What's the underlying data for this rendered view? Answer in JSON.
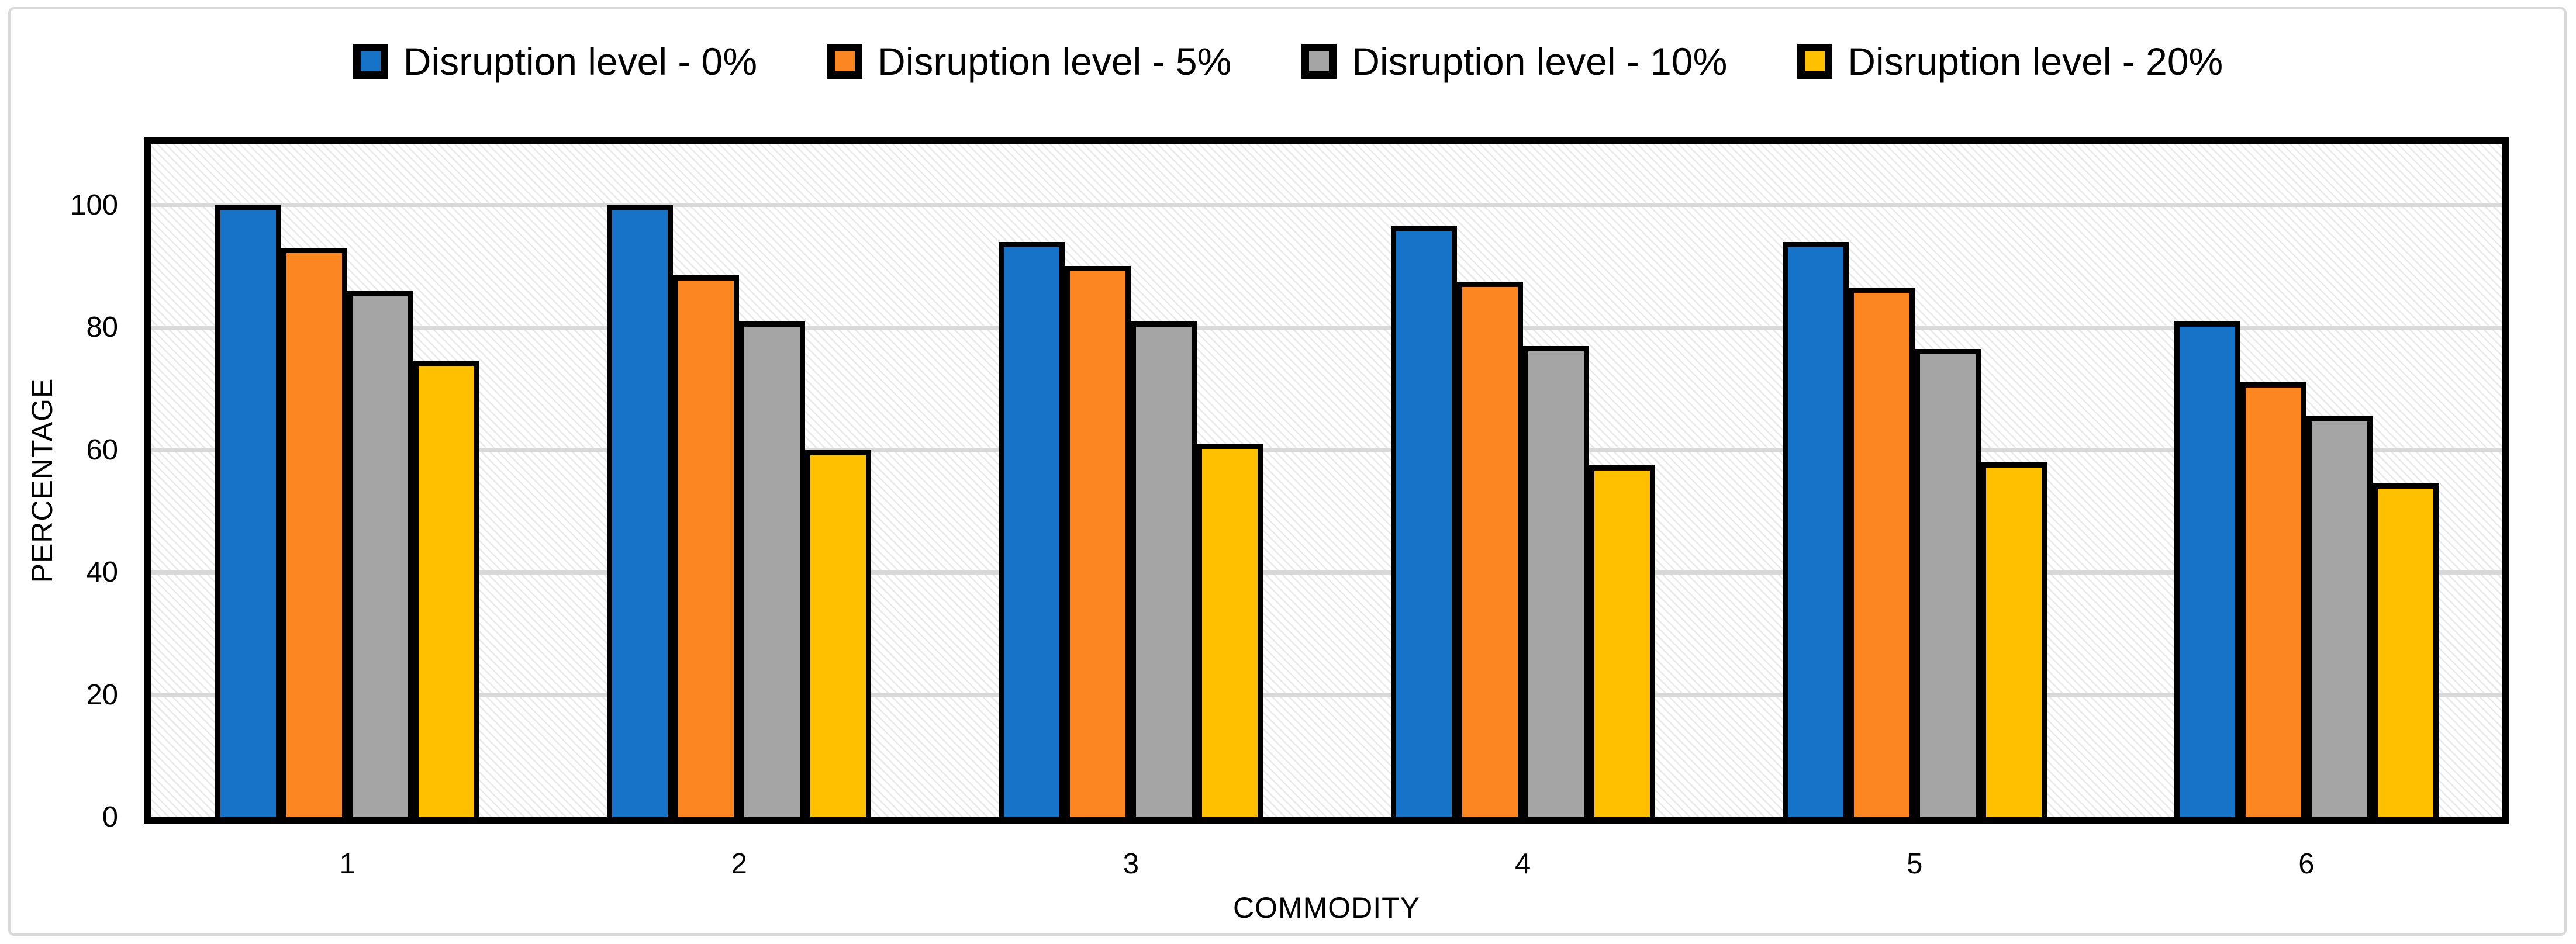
{
  "figure": {
    "background": "#FFFFFF",
    "border_color": "#D9D9D9"
  },
  "chart_data": {
    "type": "bar",
    "title": "",
    "categories": [
      "1",
      "2",
      "3",
      "4",
      "5",
      "6"
    ],
    "series": [
      {
        "name": "Disruption level - 0%",
        "color": "#1773C8",
        "values": [
          100,
          100,
          94,
          96.5,
          94,
          81
        ]
      },
      {
        "name": "Disruption level - 5%",
        "color": "#FB8622",
        "values": [
          93,
          88.5,
          90,
          87.5,
          86.5,
          71
        ]
      },
      {
        "name": "Disruption level - 10%",
        "color": "#A5A5A5",
        "values": [
          86,
          81,
          81,
          77,
          76.5,
          65.5
        ]
      },
      {
        "name": "Disruption level - 20%",
        "color": "#FFC000",
        "values": [
          74.5,
          60,
          61,
          57.5,
          58,
          54.5
        ]
      }
    ],
    "xlabel": "COMMODITY",
    "ylabel": "PERCENTAGE",
    "ylim": [
      0,
      110
    ],
    "yticks": [
      0,
      20,
      40,
      60,
      80,
      100
    ],
    "grid": true,
    "gridline_color": "#D9D9D9",
    "bar_outline_color": "#000000",
    "plot_background": "diagonal-hatch",
    "legend_position": "top-center"
  }
}
